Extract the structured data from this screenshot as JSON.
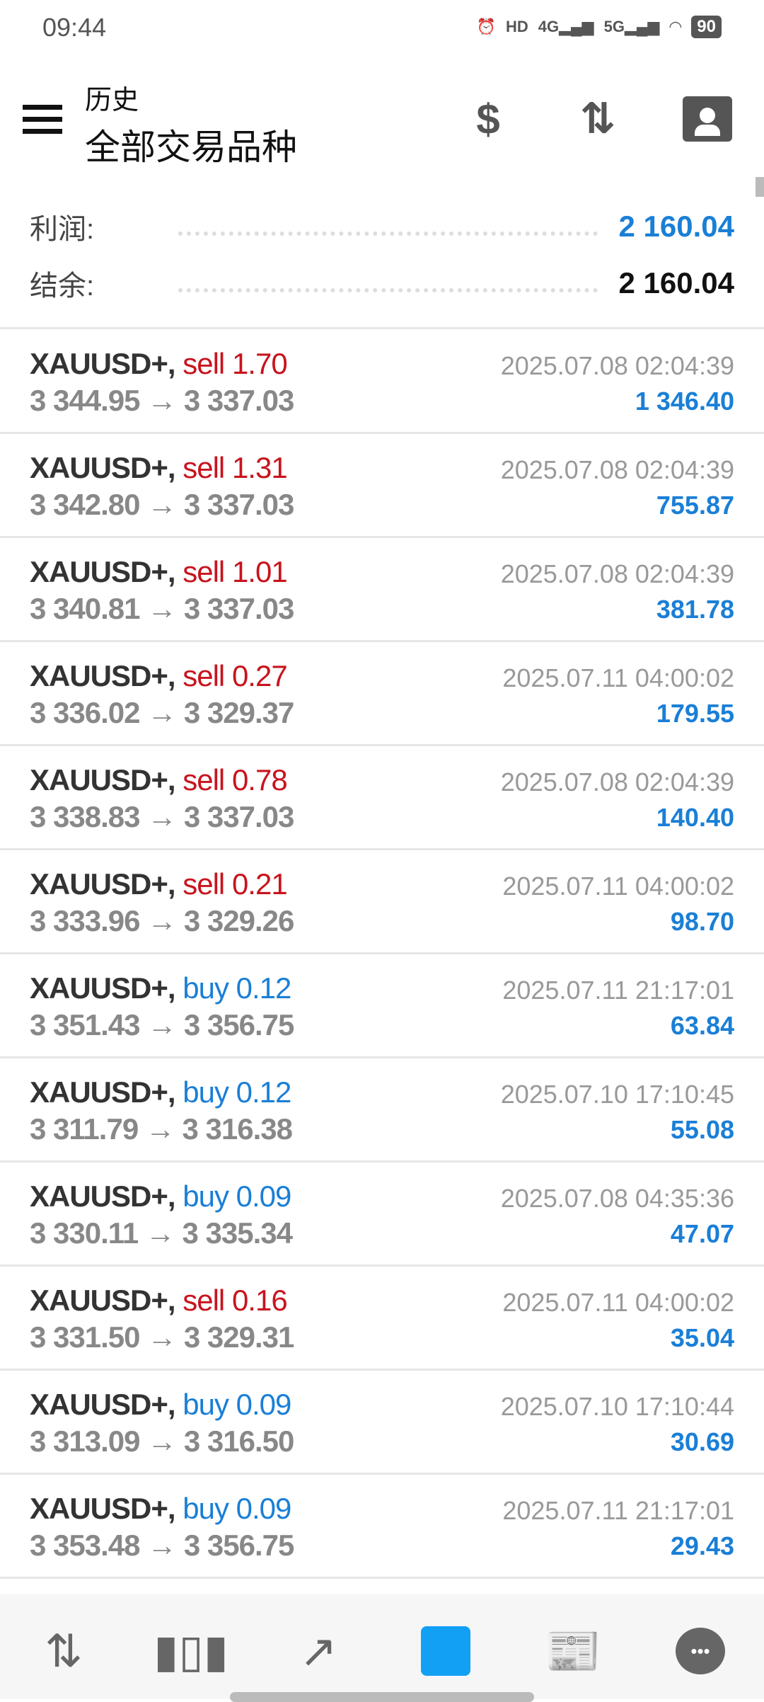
{
  "status_bar": {
    "time": "09:44",
    "battery": "90",
    "icons": [
      "alarm-icon",
      "hd-icon",
      "4g-signal-icon",
      "5g-signal-icon",
      "wifi-icon",
      "battery-icon"
    ],
    "net1": "4G",
    "net2": "5G",
    "hd": "HD"
  },
  "header": {
    "title": "历史",
    "subtitle": "全部交易品种",
    "icons": [
      "currency-exchange-icon",
      "sort-icon",
      "calendar-user-icon"
    ]
  },
  "summary": {
    "profit_label": "利润:",
    "profit_value": "2 160.04",
    "balance_label": "结余:",
    "balance_value": "2 160.04",
    "profit_color": "#1a7fd6"
  },
  "trades": [
    {
      "symbol": "XAUUSD+,",
      "side": "sell",
      "volume": "1.70",
      "open": "3 344.95",
      "close": "3 337.03",
      "time": "2025.07.08 02:04:39",
      "profit": "1 346.40"
    },
    {
      "symbol": "XAUUSD+,",
      "side": "sell",
      "volume": "1.31",
      "open": "3 342.80",
      "close": "3 337.03",
      "time": "2025.07.08 02:04:39",
      "profit": "755.87"
    },
    {
      "symbol": "XAUUSD+,",
      "side": "sell",
      "volume": "1.01",
      "open": "3 340.81",
      "close": "3 337.03",
      "time": "2025.07.08 02:04:39",
      "profit": "381.78"
    },
    {
      "symbol": "XAUUSD+,",
      "side": "sell",
      "volume": "0.27",
      "open": "3 336.02",
      "close": "3 329.37",
      "time": "2025.07.11 04:00:02",
      "profit": "179.55"
    },
    {
      "symbol": "XAUUSD+,",
      "side": "sell",
      "volume": "0.78",
      "open": "3 338.83",
      "close": "3 337.03",
      "time": "2025.07.08 02:04:39",
      "profit": "140.40"
    },
    {
      "symbol": "XAUUSD+,",
      "side": "sell",
      "volume": "0.21",
      "open": "3 333.96",
      "close": "3 329.26",
      "time": "2025.07.11 04:00:02",
      "profit": "98.70"
    },
    {
      "symbol": "XAUUSD+,",
      "side": "buy",
      "volume": "0.12",
      "open": "3 351.43",
      "close": "3 356.75",
      "time": "2025.07.11 21:17:01",
      "profit": "63.84"
    },
    {
      "symbol": "XAUUSD+,",
      "side": "buy",
      "volume": "0.12",
      "open": "3 311.79",
      "close": "3 316.38",
      "time": "2025.07.10 17:10:45",
      "profit": "55.08"
    },
    {
      "symbol": "XAUUSD+,",
      "side": "buy",
      "volume": "0.09",
      "open": "3 330.11",
      "close": "3 335.34",
      "time": "2025.07.08 04:35:36",
      "profit": "47.07"
    },
    {
      "symbol": "XAUUSD+,",
      "side": "sell",
      "volume": "0.16",
      "open": "3 331.50",
      "close": "3 329.31",
      "time": "2025.07.11 04:00:02",
      "profit": "35.04"
    },
    {
      "symbol": "XAUUSD+,",
      "side": "buy",
      "volume": "0.09",
      "open": "3 313.09",
      "close": "3 316.50",
      "time": "2025.07.10 17:10:44",
      "profit": "30.69"
    },
    {
      "symbol": "XAUUSD+,",
      "side": "buy",
      "volume": "0.09",
      "open": "3 353.48",
      "close": "3 356.75",
      "time": "2025.07.11 21:17:01",
      "profit": "29.43"
    }
  ],
  "bottom_nav": {
    "items": [
      "quotes-icon",
      "chart-icon",
      "trade-icon",
      "history-icon",
      "news-icon",
      "messages-icon"
    ],
    "active": "history-icon",
    "active_color": "#12a0f5"
  },
  "colors": {
    "sell": "#c8141e",
    "buy": "#1a7fd6"
  }
}
